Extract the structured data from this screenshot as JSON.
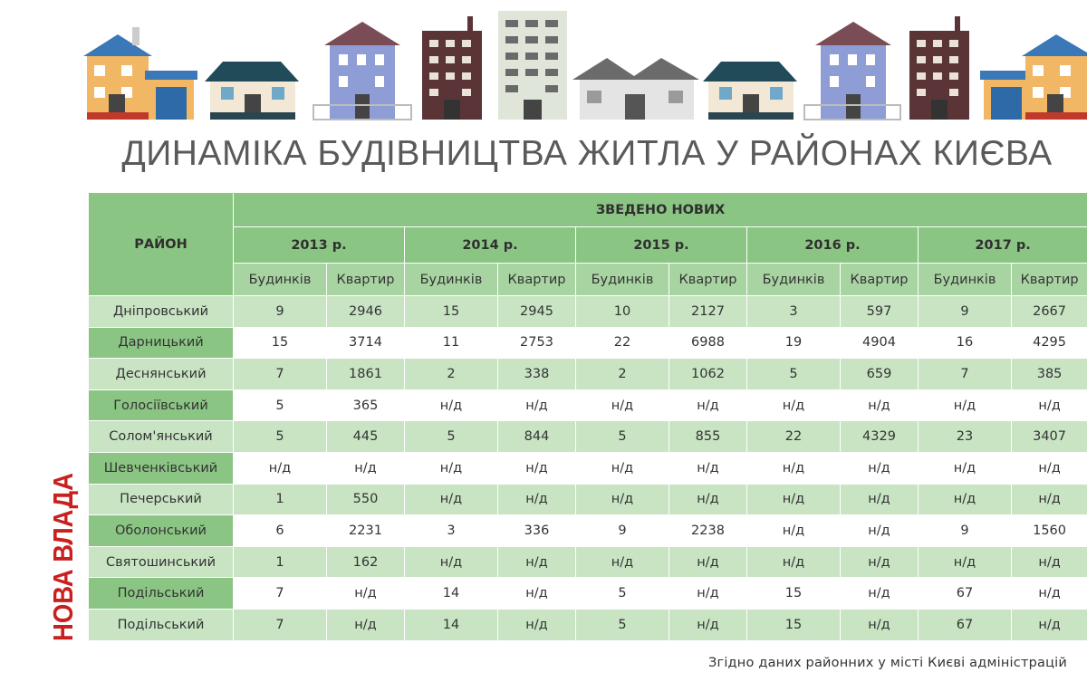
{
  "title": "ДИНАМІКА БУДІВНИЦТВА ЖИТЛА У РАЙОНАХ КИЄВА",
  "brand": "НОВА ВЛАДА",
  "footer": "Згідно даних районних у місті Києві адміністрацій",
  "table": {
    "district_header": "РАЙОН",
    "group_header": "ЗВЕДЕНО НОВИХ",
    "years": [
      "2013 р.",
      "2014 р.",
      "2015 р.",
      "2016 р.",
      "2017 р."
    ],
    "sub_headers": [
      "Будинків",
      "Квартир"
    ],
    "rows": [
      {
        "district": "Дніпровський",
        "values": [
          "9",
          "2946",
          "15",
          "2945",
          "10",
          "2127",
          "3",
          "597",
          "9",
          "2667"
        ]
      },
      {
        "district": "Дарницький",
        "values": [
          "15",
          "3714",
          "11",
          "2753",
          "22",
          "6988",
          "19",
          "4904",
          "16",
          "4295"
        ]
      },
      {
        "district": "Деснянський",
        "values": [
          "7",
          "1861",
          "2",
          "338",
          "2",
          "1062",
          "5",
          "659",
          "7",
          "385"
        ]
      },
      {
        "district": "Голосіївський",
        "values": [
          "5",
          "365",
          "н/д",
          "н/д",
          "н/д",
          "н/д",
          "н/д",
          "н/д",
          "н/д",
          "н/д"
        ]
      },
      {
        "district": "Солом'янський",
        "values": [
          "5",
          "445",
          "5",
          "844",
          "5",
          "855",
          "22",
          "4329",
          "23",
          "3407"
        ]
      },
      {
        "district": "Шевченківський",
        "values": [
          "н/д",
          "н/д",
          "н/д",
          "н/д",
          "н/д",
          "н/д",
          "н/д",
          "н/д",
          "н/д",
          "н/д"
        ]
      },
      {
        "district": "Печерський",
        "values": [
          "1",
          "550",
          "н/д",
          "н/д",
          "н/д",
          "н/д",
          "н/д",
          "н/д",
          "н/д",
          "н/д"
        ]
      },
      {
        "district": "Оболонський",
        "values": [
          "6",
          "2231",
          "3",
          "336",
          "9",
          "2238",
          "н/д",
          "н/д",
          "9",
          "1560"
        ]
      },
      {
        "district": "Святошинський",
        "values": [
          "1",
          "162",
          "н/д",
          "н/д",
          "н/д",
          "н/д",
          "н/д",
          "н/д",
          "н/д",
          "н/д"
        ]
      },
      {
        "district": "Подільський",
        "values": [
          "7",
          "н/д",
          "14",
          "н/д",
          "5",
          "н/д",
          "15",
          "н/д",
          "67",
          "н/д"
        ]
      },
      {
        "district": "Подільський",
        "values": [
          "7",
          "н/д",
          "14",
          "н/д",
          "5",
          "н/д",
          "15",
          "н/д",
          "67",
          "н/д"
        ]
      }
    ]
  },
  "colors": {
    "header_green": "#8bc584",
    "subheader_green": "#a8d4a2",
    "row_light_green": "#c8e4c3",
    "brand_red": "#c8201f",
    "title_gray": "#5a5a5a"
  },
  "icons": [
    "house-illustration-row"
  ]
}
